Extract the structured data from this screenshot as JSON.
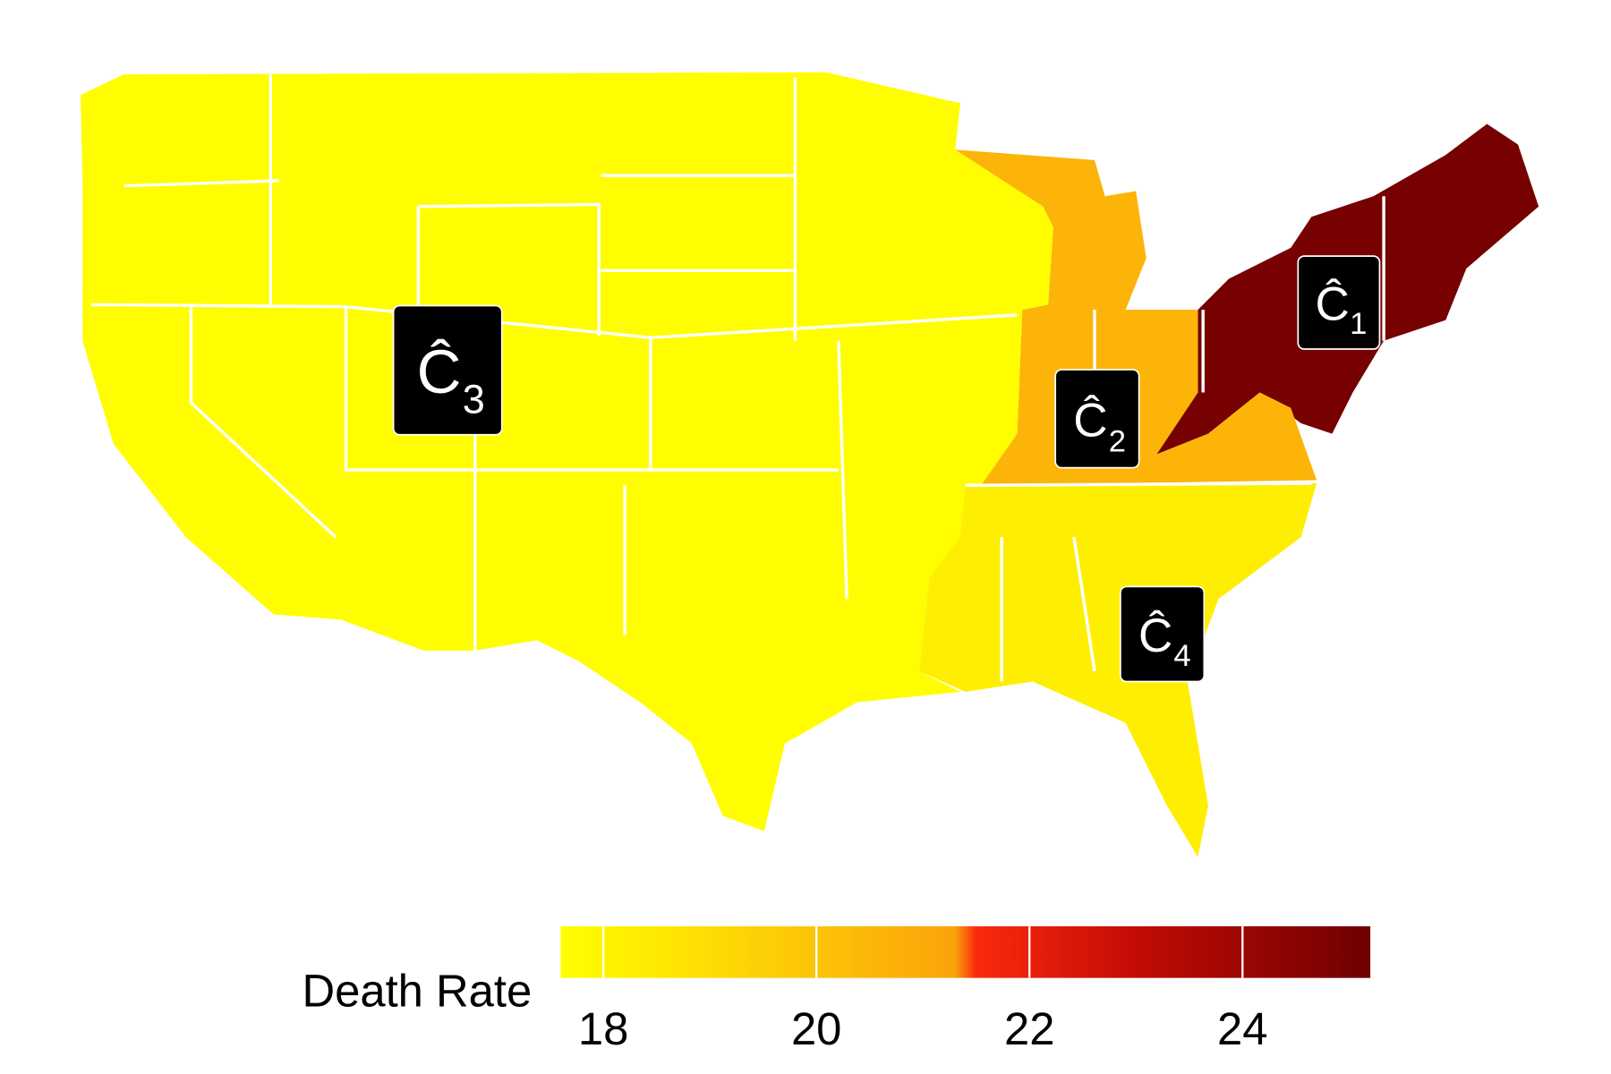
{
  "legend": {
    "title": "Death Rate",
    "lim": [
      17.6,
      25.2
    ],
    "ticks": [
      18,
      20,
      22,
      24
    ],
    "colorscale": [
      {
        "value": 17.6,
        "color": "#ffff00"
      },
      {
        "value": 21.3,
        "color": "#fba30a"
      },
      {
        "value": 21.5,
        "color": "#fb2a0c"
      },
      {
        "value": 23.0,
        "color": "#c20b05"
      },
      {
        "value": 25.2,
        "color": "#6e0000"
      }
    ]
  },
  "clusters": [
    {
      "label": "Ĉ",
      "subscript": "1",
      "value": 25.0
    },
    {
      "label": "Ĉ",
      "subscript": "2",
      "value": 20.6
    },
    {
      "label": "Ĉ",
      "subscript": "3",
      "value": 17.7
    },
    {
      "label": "Ĉ",
      "subscript": "4",
      "value": 18.3
    }
  ]
}
